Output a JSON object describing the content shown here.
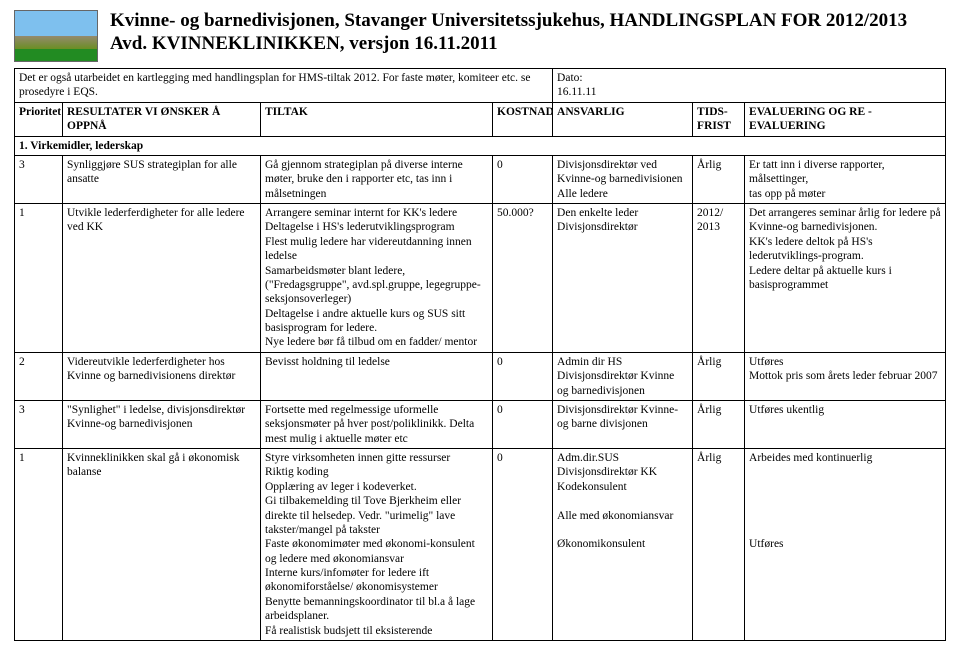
{
  "header": {
    "line1": "Kvinne- og barnedivisjonen, Stavanger Universitetssjukehus, HANDLINGSPLAN FOR 2012/2013",
    "line2": "Avd. KVINNEKLINIKKEN, versjon 16.11.2011"
  },
  "meta": {
    "note": "Det er også utarbeidet en kartlegging med handlingsplan for HMS-tiltak 2012. For faste møter, komiteer etc. se prosedyre i EQS.",
    "dato_label": "Dato:",
    "dato_value": "16.11.11"
  },
  "columns": {
    "prioritet": "Prioritet",
    "resultater": "RESULTATER VI ØNSKER Å OPPNÅ",
    "tiltak": "TILTAK",
    "kostnad": "KOSTNAD",
    "ansvarlig": "ANSVARLIG",
    "tidsfrist": "TIDS-FRIST",
    "evaluering": "EVALUERING OG RE -EVALUERING"
  },
  "section1_title": "1. Virkemidler, lederskap",
  "rows": [
    {
      "prio": "3",
      "res": "Synliggjøre SUS strategiplan for alle ansatte",
      "tiltak": "Gå gjennom strategiplan på diverse interne møter, bruke den i rapporter etc, tas inn i målsetningen",
      "kostnad": "0",
      "ansvarlig": "Divisjonsdirektør ved Kvinne-og barnedivisionen\nAlle ledere",
      "tidsfrist": "Årlig",
      "eval": "Er tatt inn i diverse rapporter, målsettinger,\ntas opp på møter"
    },
    {
      "prio": "1",
      "res": "Utvikle lederferdigheter for alle ledere ved KK",
      "tiltak": "Arrangere seminar internt for KK's ledere\nDeltagelse i HS's lederutviklingsprogram\nFlest mulig ledere har videreutdanning innen ledelse\nSamarbeidsmøter blant ledere, (\"Fredagsgruppe\", avd.spl.gruppe, legegruppe-seksjonsoverleger)\nDeltagelse i andre aktuelle kurs og SUS sitt basisprogram for ledere.\nNye ledere bør få tilbud om en fadder/ mentor",
      "kostnad": "50.000?",
      "ansvarlig": "Den enkelte leder\nDivisjonsdirektør",
      "tidsfrist": "2012/\n2013",
      "eval": "Det arrangeres seminar årlig for ledere på Kvinne-og barnedivisjonen.\nKK's ledere deltok på HS's lederutviklings-program.\nLedere deltar på aktuelle kurs i basisprogrammet"
    },
    {
      "prio": "2",
      "res": "Videreutvikle lederferdigheter hos Kvinne og barnedivisionens direktør",
      "tiltak": "Bevisst holdning til ledelse",
      "kostnad": "0",
      "ansvarlig": "Admin dir HS\nDivisjonsdirektør Kvinne og barnedivisjonen",
      "tidsfrist": "Årlig",
      "eval": "Utføres\nMottok pris som årets leder februar 2007"
    },
    {
      "prio": "3",
      "res": "\"Synlighet\" i ledelse, divisjonsdirektør Kvinne-og barnedivisjonen",
      "tiltak": "Fortsette med regelmessige uformelle seksjonsmøter på hver post/poliklinikk. Delta mest mulig i aktuelle møter etc",
      "kostnad": "0",
      "ansvarlig": "Divisjonsdirektør Kvinne-og barne divisjonen",
      "tidsfrist": "Årlig",
      "eval": "Utføres ukentlig"
    },
    {
      "prio": "1",
      "res": "Kvinneklinikken skal gå i økonomisk balanse",
      "tiltak": "Styre virksomheten innen gitte ressurser\nRiktig koding\nOpplæring av leger i kodeverket.\nGi tilbakemelding til Tove Bjerkheim eller direkte til helsedep. Vedr. \"urimelig\" lave takster/mangel på takster\nFaste økonomimøter med økonomi-konsulent og ledere med økonomiansvar\nInterne kurs/infomøter for ledere ift økonomiforståelse/ økonomisystemer\nBenytte bemanningskoordinator til bl.a å lage arbeidsplaner.\nFå realistisk budsjett til eksisterende",
      "kostnad": "0",
      "ansvarlig": "Adm.dir.SUS\nDivisjonsdirektør KK\nKodekonsulent\n\nAlle med økonomiansvar\n\nØkonomikonsulent",
      "tidsfrist": "Årlig",
      "eval": "Arbeides med kontinuerlig\n\n\n\n\n\nUtføres"
    }
  ]
}
